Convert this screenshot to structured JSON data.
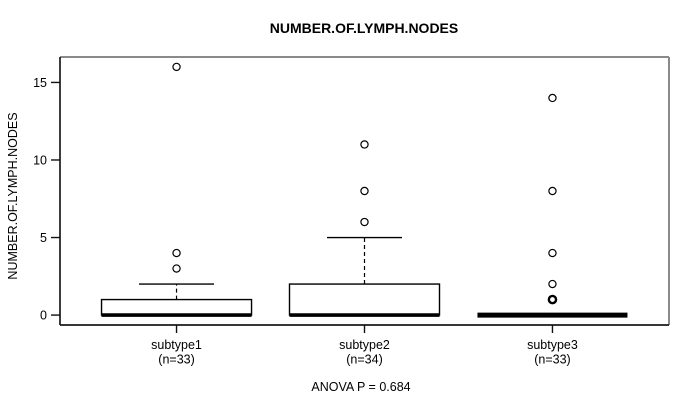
{
  "chart_data": {
    "type": "boxplot",
    "title": "NUMBER.OF.LYMPH.NODES",
    "ylabel": "NUMBER.OF.LYMPH.NODES",
    "xlabel": "",
    "annotation": "ANOVA P = 0.684",
    "yticks": [
      0,
      5,
      10,
      15
    ],
    "ylim": [
      -0.64,
      16.64
    ],
    "grid": false,
    "legend": "none",
    "series": [
      {
        "label": "subtype1",
        "sublabel": "(n=33)",
        "n": 33,
        "q1": 0,
        "median": 0,
        "q3": 1,
        "whisker_low": 0,
        "whisker_high": 2,
        "outliers": [
          3,
          4,
          16
        ],
        "emphasized_outliers": []
      },
      {
        "label": "subtype2",
        "sublabel": "(n=34)",
        "n": 34,
        "q1": 0,
        "median": 0,
        "q3": 2,
        "whisker_low": 0,
        "whisker_high": 5,
        "outliers": [
          6,
          8,
          11
        ],
        "emphasized_outliers": []
      },
      {
        "label": "subtype3",
        "sublabel": "(n=33)",
        "n": 33,
        "q1": 0,
        "median": 0,
        "q3": 0,
        "whisker_low": 0,
        "whisker_high": 0,
        "outliers": [
          1,
          2,
          4,
          8,
          14
        ],
        "emphasized_outliers": [
          1
        ]
      }
    ],
    "colors": {
      "background": "#ffffff",
      "box_fill": "#ffffff",
      "stroke": "#000000",
      "frame_top_right": "#8a8a8a",
      "frame_bottom_left": "#1a1a1a"
    }
  }
}
